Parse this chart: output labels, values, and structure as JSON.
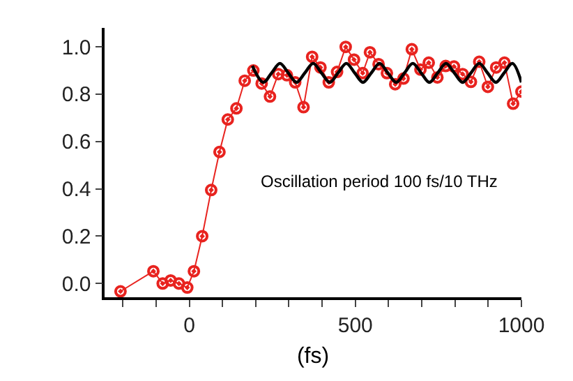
{
  "chart_data": {
    "type": "line",
    "xlabel": "(fs)",
    "annotations": [
      "Oscillation period 100 fs/10 THz"
    ],
    "series": [
      {
        "color": "#e8231f",
        "marker": "circle",
        "x": [
          -207,
          -108,
          -80,
          -56,
          -31,
          -6,
          14,
          39,
          66,
          91,
          116,
          142,
          167,
          193,
          218,
          243,
          268,
          294,
          319,
          344,
          370,
          395,
          420,
          445,
          471,
          496,
          522,
          544,
          570,
          595,
          620,
          645,
          670,
          696,
          721,
          747,
          772,
          797,
          823,
          848,
          873,
          899,
          924,
          949,
          975,
          1000
        ],
        "values": [
          -0.033,
          0.052,
          0.0,
          0.013,
          0.0,
          -0.017,
          0.052,
          0.2,
          0.395,
          0.556,
          0.693,
          0.74,
          0.857,
          0.9,
          0.845,
          0.79,
          0.885,
          0.88,
          0.85,
          0.745,
          0.958,
          0.913,
          0.85,
          0.894,
          1.0,
          0.946,
          0.889,
          0.977,
          0.927,
          0.889,
          0.842,
          0.866,
          0.99,
          0.904,
          0.933,
          0.871,
          0.919,
          0.917,
          0.885,
          0.852,
          0.937,
          0.831,
          0.913,
          0.933,
          0.76,
          0.811
        ]
      },
      {
        "color": "#000000",
        "marker": "none",
        "x": [
          190,
          223,
          248,
          273,
          298,
          323,
          348,
          373,
          398,
          423,
          448,
          473,
          498,
          523,
          548,
          573,
          598,
          623,
          648,
          673,
          698,
          723,
          748,
          773,
          798,
          823,
          848,
          873,
          898,
          923,
          948,
          973,
          1000
        ],
        "values": [
          0.92,
          0.85,
          0.89,
          0.93,
          0.89,
          0.85,
          0.89,
          0.93,
          0.89,
          0.85,
          0.89,
          0.93,
          0.89,
          0.85,
          0.89,
          0.93,
          0.89,
          0.85,
          0.89,
          0.93,
          0.89,
          0.85,
          0.89,
          0.93,
          0.89,
          0.85,
          0.89,
          0.93,
          0.89,
          0.85,
          0.89,
          0.93,
          0.85
        ]
      }
    ],
    "xlim": [
      -255,
      1000
    ],
    "xticks": [
      {
        "value": -200,
        "label": null
      },
      {
        "value": -100,
        "label": null
      },
      0,
      {
        "value": 100,
        "label": null
      },
      {
        "value": 200,
        "label": null
      },
      {
        "value": 300,
        "label": null
      },
      {
        "value": 400,
        "label": null
      },
      500,
      {
        "value": 600,
        "label": null
      },
      {
        "value": 700,
        "label": null
      },
      {
        "value": 800,
        "label": null
      },
      {
        "value": 900,
        "label": null
      },
      1000
    ],
    "ylim": [
      -0.058,
      1.08
    ],
    "yticks": [
      {
        "value": 0,
        "label": "0.0"
      },
      {
        "value": 0.2,
        "label": "0.2"
      },
      {
        "value": 0.4,
        "label": "0.4"
      },
      {
        "value": 0.6,
        "label": "0.6"
      },
      {
        "value": 0.8,
        "label": "0.8"
      },
      {
        "value": 1.0,
        "label": "1.0"
      }
    ],
    "tick_labels": true
  }
}
